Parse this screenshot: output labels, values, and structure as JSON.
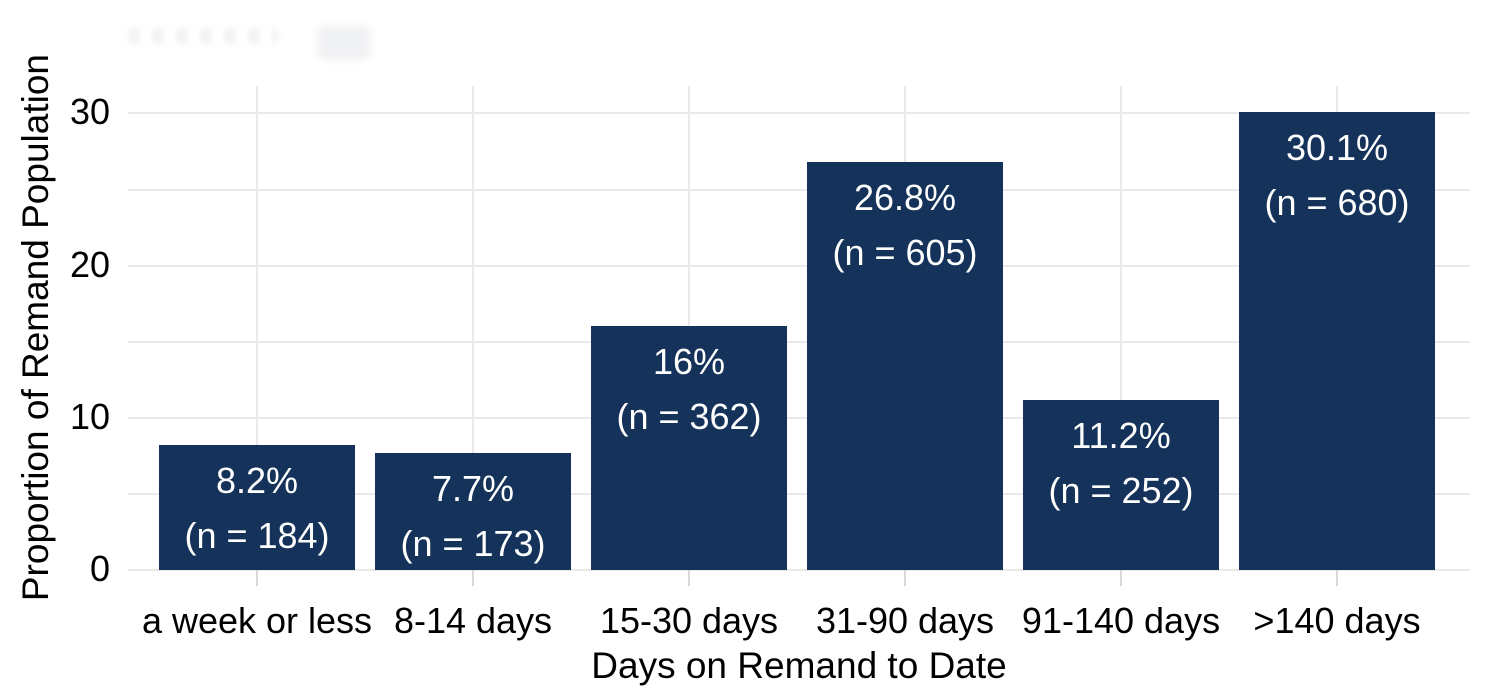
{
  "chart_data": {
    "type": "bar",
    "categories": [
      "a week or less",
      "8-14 days",
      "15-30 days",
      "31-90 days",
      "91-140 days",
      ">140 days"
    ],
    "values": [
      8.2,
      7.7,
      16,
      26.8,
      11.2,
      30.1
    ],
    "counts": [
      184,
      173,
      362,
      605,
      252,
      680
    ],
    "bar_labels": [
      {
        "pct": "8.2%",
        "n": "(n = 184)"
      },
      {
        "pct": "7.7%",
        "n": "(n = 173)"
      },
      {
        "pct": "16%",
        "n": "(n = 362)"
      },
      {
        "pct": "26.8%",
        "n": "(n = 605)"
      },
      {
        "pct": "11.2%",
        "n": "(n = 252)"
      },
      {
        "pct": "30.1%",
        "n": "(n = 680)"
      }
    ],
    "xlabel": "Days on Remand to Date",
    "ylabel": "Proportion of Remand Population",
    "y_ticks": [
      {
        "value": 0,
        "label": "0"
      },
      {
        "value": 10,
        "label": "10"
      },
      {
        "value": 20,
        "label": "20"
      },
      {
        "value": 30,
        "label": "30"
      }
    ],
    "y_minor_ticks": [
      5,
      15,
      25
    ],
    "ylim": [
      0,
      31.9
    ],
    "legend": "none",
    "grid": "horizontal lines every 5 units; vertical lines at category centers",
    "colors": {
      "bar": "#15335A",
      "bar_label": "#FFFFFF",
      "gridline": "#E9E9E9",
      "axis_tick": "#D8D8D8",
      "text": "#000000",
      "background": "#FFFFFF"
    }
  }
}
